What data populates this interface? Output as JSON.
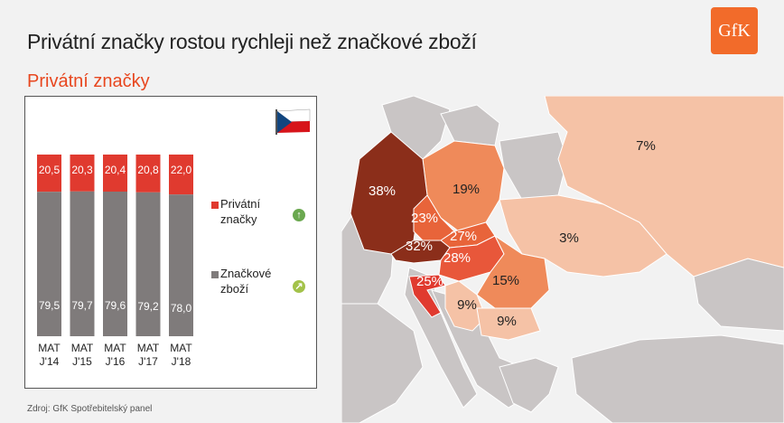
{
  "header": {
    "title": "Privátní značky rostou rychleji než značkové zboží",
    "subtitle": "Privátní značky",
    "logo": "GfK"
  },
  "footer": {
    "source": "Zdroj: GfK Spotřebitelský panel"
  },
  "colors": {
    "private": "#e03a2f",
    "brand": "#7f7b7b",
    "accent": "#e8471f",
    "arrow_up": "#6aa84f",
    "arrow_diag": "#a3c24a"
  },
  "chart_data": {
    "type": "bar",
    "stacked": true,
    "categories": [
      "MAT J'14",
      "MAT J'15",
      "MAT J'16",
      "MAT J'17",
      "MAT J'18"
    ],
    "category_lines": [
      [
        "MAT",
        "J'14"
      ],
      [
        "MAT",
        "J'15"
      ],
      [
        "MAT",
        "J'16"
      ],
      [
        "MAT",
        "J'17"
      ],
      [
        "MAT",
        "J'18"
      ]
    ],
    "series": [
      {
        "name": "Privátní značky",
        "values": [
          "20,5",
          "20,3",
          "20,4",
          "20,8",
          "22,0"
        ],
        "numeric": [
          20.5,
          20.3,
          20.4,
          20.8,
          22.0
        ]
      },
      {
        "name": "Značkové zboží",
        "values": [
          "79,5",
          "79,7",
          "79,6",
          "79,2",
          "78,0"
        ],
        "numeric": [
          79.5,
          79.7,
          79.6,
          79.2,
          78.0
        ]
      }
    ],
    "legend": [
      {
        "lines": [
          "Privátní",
          "značky"
        ],
        "trend": "up-arrow-icon"
      },
      {
        "lines": [
          "Značkové",
          "zboží"
        ],
        "trend": "up-right-arrow-icon"
      }
    ],
    "ylim": [
      0,
      100
    ]
  },
  "map": {
    "country_values": [
      {
        "country": "Germany",
        "value": "38%"
      },
      {
        "country": "Poland",
        "value": "19%"
      },
      {
        "country": "Russia",
        "value": "7%"
      },
      {
        "country": "Czech Republic",
        "value": "23%"
      },
      {
        "country": "Slovakia",
        "value": "27%"
      },
      {
        "country": "Austria",
        "value": "32%"
      },
      {
        "country": "Hungary",
        "value": "28%"
      },
      {
        "country": "Ukraine",
        "value": "3%"
      },
      {
        "country": "Croatia",
        "value": "25%"
      },
      {
        "country": "Romania",
        "value": "15%"
      },
      {
        "country": "Serbia",
        "value": "9%"
      },
      {
        "country": "Bulgaria",
        "value": "9%"
      }
    ]
  }
}
